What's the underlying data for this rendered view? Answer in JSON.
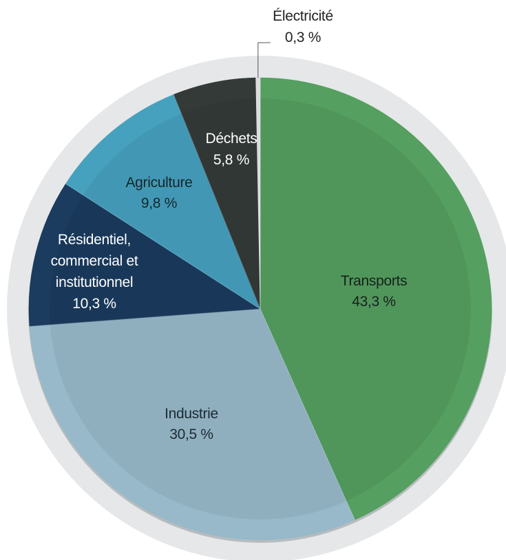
{
  "chart_data": {
    "type": "pie",
    "title": "",
    "unit": "%",
    "start": "12 o'clock, clockwise",
    "slices": [
      {
        "name": "Transports",
        "value": 43.3,
        "label_lines": [
          "Transports",
          "43,3 %"
        ],
        "color": "#559f60",
        "text_color": "#17201a"
      },
      {
        "name": "Industrie",
        "value": 30.5,
        "label_lines": [
          "Industrie",
          "30,5 %"
        ],
        "color": "#97b9ca",
        "text_color": "#1c2a33"
      },
      {
        "name": "Résidentiel, commercial et institutionnel",
        "value": 10.3,
        "label_lines": [
          "Résidentiel,",
          "commercial et",
          "institutionnel",
          "10,3 %"
        ],
        "color": "#1b3c5e",
        "text_color": "#ffffff"
      },
      {
        "name": "Agriculture",
        "value": 9.8,
        "label_lines": [
          "Agriculture",
          "9,8 %"
        ],
        "color": "#46a1be",
        "text_color": "#16262c"
      },
      {
        "name": "Déchets",
        "value": 5.8,
        "label_lines": [
          "Déchets",
          "5,8 %"
        ],
        "color": "#343a38",
        "text_color": "#ffffff"
      },
      {
        "name": "Électricité",
        "value": 0.3,
        "label_lines": [
          "Électricité",
          "0,3 %"
        ],
        "color": "#dcdcdc",
        "text_color": "#222222",
        "callout": true
      }
    ]
  }
}
